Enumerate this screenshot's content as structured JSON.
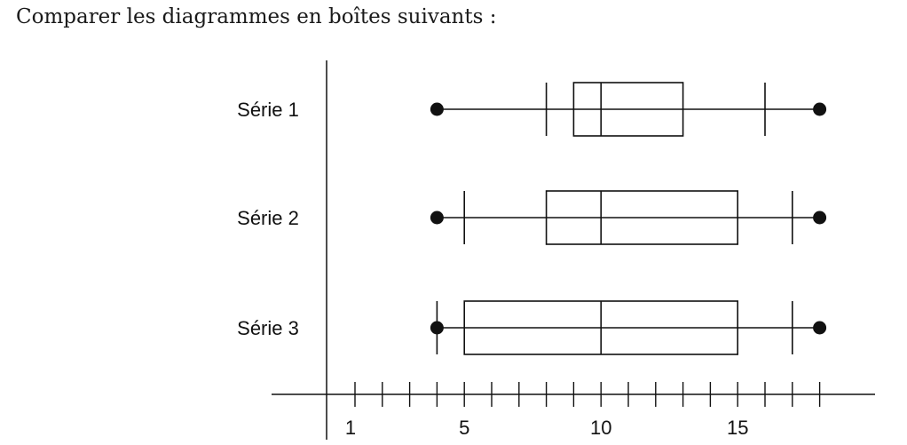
{
  "instruction": "Comparer les diagrammes en boîtes suivants :",
  "chart_data": {
    "type": "boxplot",
    "orientation": "horizontal",
    "title": "",
    "xlabel": "",
    "ylabel": "",
    "x_range": [
      -1,
      20
    ],
    "x_ticks": [
      1,
      2,
      3,
      4,
      5,
      6,
      7,
      8,
      9,
      10,
      11,
      12,
      13,
      14,
      15,
      16,
      17,
      18
    ],
    "x_tick_labels": [
      {
        "value": 1,
        "label": "1"
      },
      {
        "value": 5,
        "label": "5"
      },
      {
        "value": 10,
        "label": "10"
      },
      {
        "value": 15,
        "label": "15"
      }
    ],
    "grid": false,
    "series": [
      {
        "name": "Série 1",
        "min": 4,
        "d1": 8,
        "q1": 9,
        "median": 10,
        "q3": 13,
        "d9": 16,
        "max": 18
      },
      {
        "name": "Série 2",
        "min": 4,
        "d1": 5,
        "q1": 8,
        "median": 10,
        "q3": 15,
        "d9": 17,
        "max": 18
      },
      {
        "name": "Série 3",
        "min": 4,
        "d1": 4,
        "q1": 5,
        "median": 10,
        "q3": 15,
        "d9": 17,
        "max": 18
      }
    ],
    "colors": {
      "ink": "#111111"
    }
  }
}
